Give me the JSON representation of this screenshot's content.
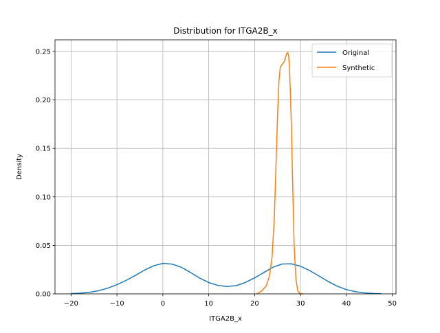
{
  "chart_data": {
    "type": "line",
    "title": "Distribution for ITGA2B_x",
    "xlabel": "ITGA2B_x",
    "ylabel": "Density",
    "xlim": [
      -23.5,
      50.8
    ],
    "ylim": [
      0,
      0.262
    ],
    "xticks": [
      -20,
      -10,
      0,
      10,
      20,
      30,
      40,
      50
    ],
    "yticks": [
      0.0,
      0.05,
      0.1,
      0.15,
      0.2,
      0.25
    ],
    "xtick_labels": [
      "−20",
      "−10",
      "0",
      "10",
      "20",
      "30",
      "40",
      "50"
    ],
    "ytick_labels": [
      "0.00",
      "0.05",
      "0.10",
      "0.15",
      "0.20",
      "0.25"
    ],
    "grid": true,
    "legend": "top-right",
    "series": [
      {
        "name": "Original",
        "color": "#1f77b4",
        "x": [
          -20,
          -18,
          -16,
          -14,
          -12,
          -10,
          -8,
          -6,
          -4,
          -2,
          0,
          2,
          4,
          6,
          8,
          10,
          12,
          14,
          16,
          18,
          20,
          22,
          24,
          26,
          28,
          30,
          32,
          34,
          36,
          38,
          40,
          42,
          44,
          46,
          47.5
        ],
        "y": [
          0.0003,
          0.0007,
          0.0016,
          0.0033,
          0.0059,
          0.0095,
          0.0139,
          0.019,
          0.0245,
          0.029,
          0.0314,
          0.0307,
          0.0275,
          0.0221,
          0.0163,
          0.0117,
          0.0087,
          0.0076,
          0.0085,
          0.0118,
          0.0165,
          0.022,
          0.0275,
          0.0308,
          0.031,
          0.0285,
          0.024,
          0.0185,
          0.0128,
          0.0079,
          0.0044,
          0.0022,
          0.001,
          0.0004,
          0.0002
        ]
      },
      {
        "name": "Synthetic",
        "color": "#ff7f0e",
        "x": [
          20.5,
          21.5,
          22.5,
          23.2,
          23.8,
          24.3,
          24.7,
          25.0,
          25.3,
          25.6,
          25.9,
          26.2,
          26.5,
          26.8,
          27.0,
          27.2,
          27.4,
          27.6,
          27.8,
          28.0,
          28.3,
          28.6,
          29.0,
          29.4,
          29.8,
          30.2,
          30.6
        ],
        "y": [
          0.0,
          0.003,
          0.008,
          0.018,
          0.038,
          0.08,
          0.14,
          0.185,
          0.22,
          0.234,
          0.236,
          0.238,
          0.24,
          0.245,
          0.248,
          0.249,
          0.246,
          0.232,
          0.205,
          0.175,
          0.11,
          0.05,
          0.015,
          0.003,
          0.0005,
          0.0,
          0.0
        ]
      }
    ]
  }
}
